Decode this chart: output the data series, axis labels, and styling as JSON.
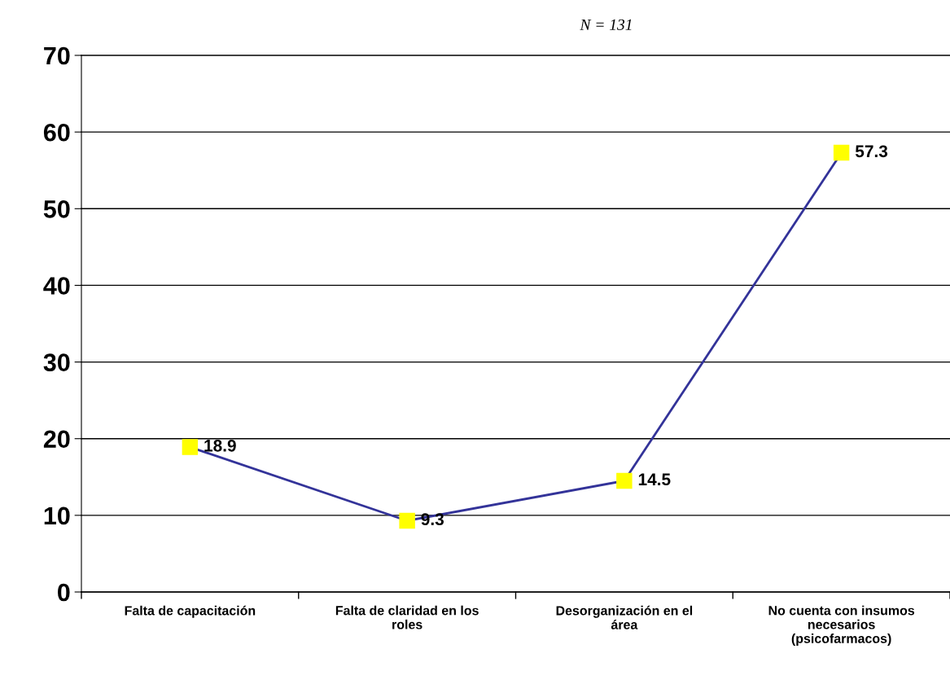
{
  "chart_data": {
    "type": "line",
    "title": "N = 131",
    "categories": [
      "Falta de capacitación",
      "Falta de claridad en los\nroles",
      "Desorganización en el\nárea",
      "No cuenta con insumos\nnecesarios\n(psicofarmacos)"
    ],
    "series": [
      {
        "color": "#333399",
        "colors": [
          "#ffff00",
          "#ffff00",
          "#ffff00",
          "#ffff00"
        ],
        "values": [
          18.9,
          9.3,
          14.5,
          57.3
        ]
      }
    ],
    "ylim": [
      0,
      70
    ],
    "yticks": [
      0,
      10,
      20,
      30,
      40,
      50,
      60,
      70
    ],
    "grid": "y",
    "marker": "square",
    "line_style": "solid",
    "data_labels": true
  }
}
